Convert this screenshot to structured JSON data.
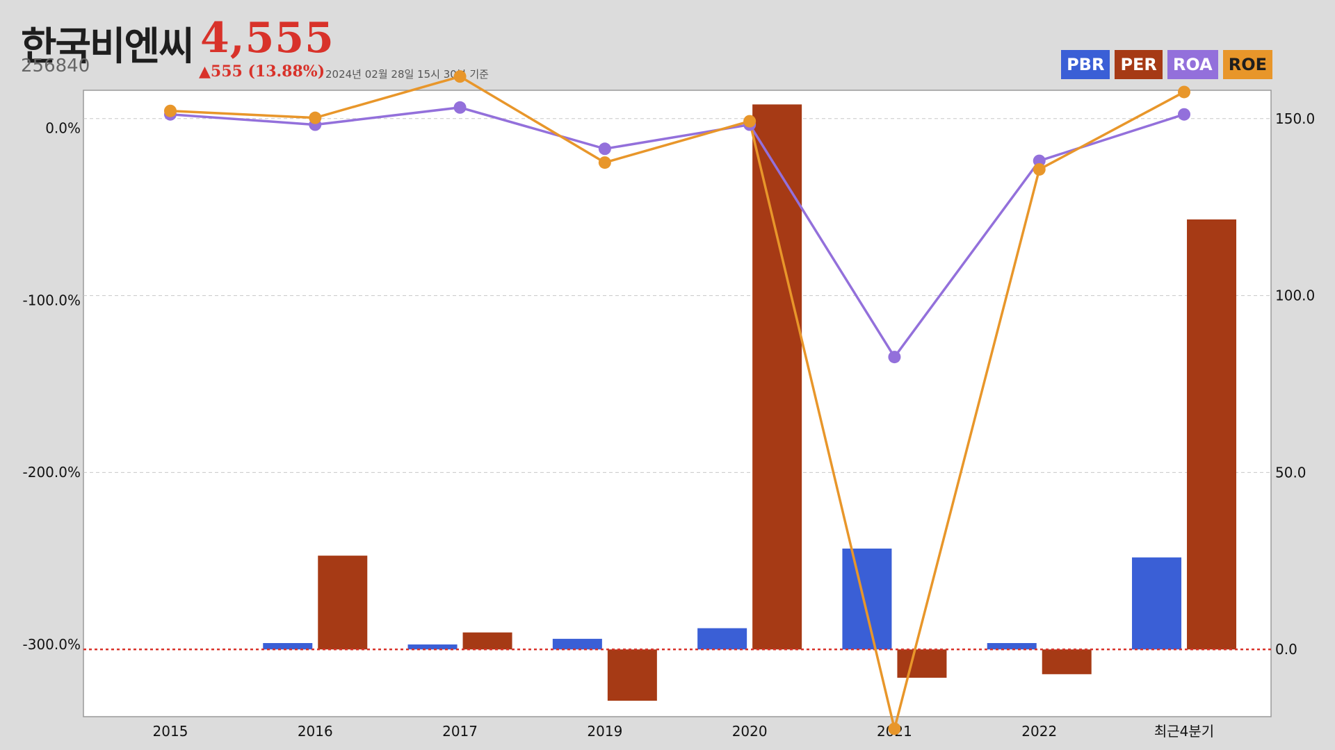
{
  "header": {
    "company": "한국비엔씨",
    "code": "256840",
    "price": "4,555",
    "change": "▲555 (13.88%)",
    "as_of": "2024년 02월 28일 15시 30분 기준"
  },
  "legend": [
    {
      "label": "PBR",
      "color": "#3a5fd6"
    },
    {
      "label": "PER",
      "color": "#a63a15"
    },
    {
      "label": "ROA",
      "color": "#9370db"
    },
    {
      "label": "ROE",
      "color": "#e8962a"
    }
  ],
  "chart_data": {
    "type": "bar",
    "categories": [
      "2015",
      "2016",
      "2017",
      "2019",
      "2020",
      "2021",
      "2022",
      "최근4분기"
    ],
    "left_axis": {
      "ticks": [
        "0.0%",
        "-100.0%",
        "-200.0%",
        "-300.0%"
      ],
      "tick_values": [
        0,
        -100,
        -200,
        -300
      ],
      "range": [
        -342,
        22
      ]
    },
    "right_axis": {
      "ticks": [
        "150.0",
        "100.0",
        "50.0",
        "0.0"
      ],
      "tick_values": [
        150,
        100,
        50,
        0
      ],
      "range": [
        -19,
        158
      ]
    },
    "grid": true,
    "series": [
      {
        "name": "PBR",
        "type": "bar",
        "axis": "right",
        "color": "#3a5fd6",
        "values": [
          0,
          1.8,
          1.4,
          3.0,
          6.0,
          28.5,
          1.8,
          26.0
        ]
      },
      {
        "name": "PER",
        "type": "bar",
        "axis": "right",
        "color": "#a63a15",
        "values": [
          0,
          26.5,
          4.8,
          -14.5,
          154.0,
          -8.0,
          -7.0,
          121.5
        ]
      },
      {
        "name": "ROA",
        "type": "line",
        "axis": "left",
        "color": "#9370db",
        "values": [
          8,
          2,
          12,
          -12,
          2,
          -133,
          -19,
          8
        ]
      },
      {
        "name": "ROE",
        "type": "line",
        "axis": "left",
        "color": "#e8962a",
        "values": [
          10,
          6,
          30,
          -20,
          4,
          -349,
          -24,
          21
        ]
      }
    ],
    "reference_line": {
      "axis": "right",
      "value": 0,
      "color": "#d8322a",
      "style": "dotted"
    }
  }
}
